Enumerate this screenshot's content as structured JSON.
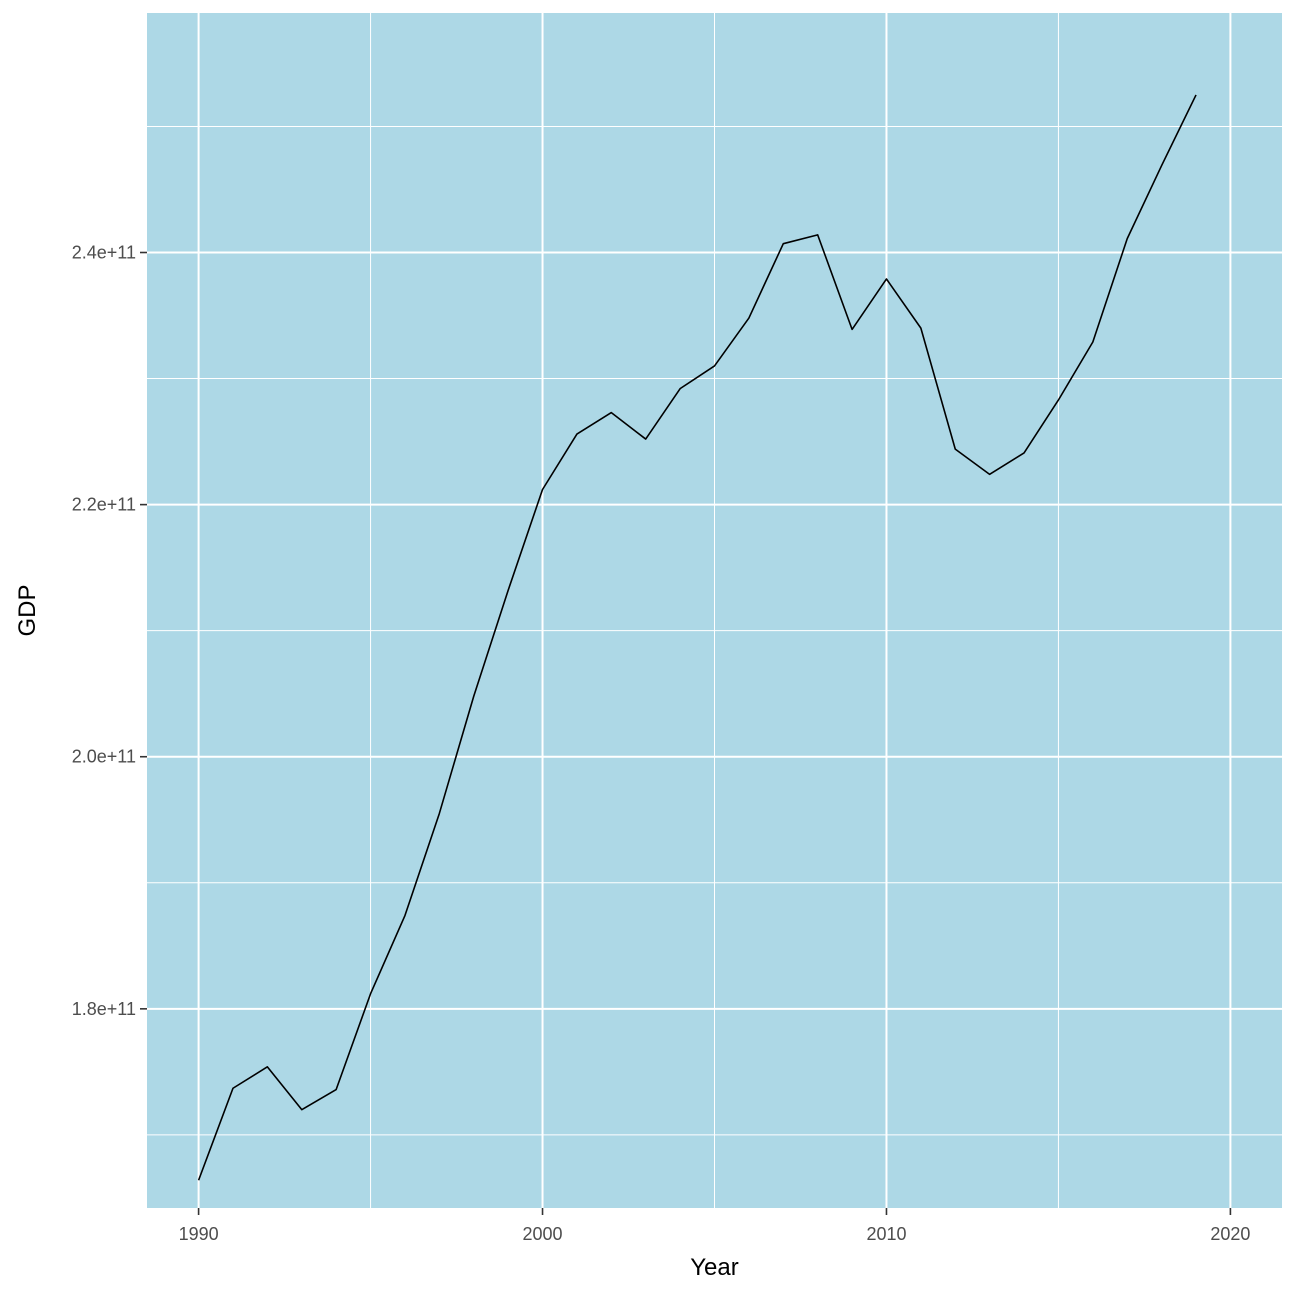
{
  "chart_data": {
    "type": "line",
    "title": "",
    "xlabel": "Year",
    "ylabel": "GDP",
    "xlim": [
      1988.5,
      2021.5
    ],
    "ylim": [
      164200000000.0,
      259000000000.0
    ],
    "x_ticks": [
      1990,
      2000,
      2010,
      2020
    ],
    "x_tick_labels": [
      "1990",
      "2000",
      "2010",
      "2020"
    ],
    "x_minor_ticks": [
      1995,
      2005,
      2015
    ],
    "y_ticks": [
      180000000000.0,
      200000000000.0,
      220000000000.0,
      240000000000.0
    ],
    "y_tick_labels": [
      "1.8e+11",
      "2.0e+11",
      "2.2e+11",
      "2.4e+11"
    ],
    "y_minor_ticks": [
      170000000000.0,
      190000000000.0,
      210000000000.0,
      230000000000.0,
      250000000000.0
    ],
    "grid": true,
    "legend": "none",
    "panel_background": "#add8e6",
    "line_color": "#000000",
    "x": [
      1990,
      1991,
      1992,
      1993,
      1994,
      1995,
      1996,
      1997,
      1998,
      1999,
      2000,
      2001,
      2002,
      2003,
      2004,
      2005,
      2006,
      2007,
      2008,
      2009,
      2010,
      2011,
      2012,
      2013,
      2014,
      2015,
      2016,
      2017,
      2018,
      2019
    ],
    "y": [
      166400000000.0,
      173700000000.0,
      175400000000.0,
      172000000000.0,
      173600000000.0,
      181200000000.0,
      187400000000.0,
      195500000000.0,
      204800000000.0,
      213200000000.0,
      221200000000.0,
      225600000000.0,
      227300000000.0,
      225200000000.0,
      229200000000.0,
      231000000000.0,
      234800000000.0,
      240700000000.0,
      241400000000.0,
      233900000000.0,
      237900000000.0,
      234000000000.0,
      224400000000.0,
      222400000000.0,
      224100000000.0,
      228300000000.0,
      232900000000.0,
      241100000000.0,
      246900000000.0,
      252500000000.0
    ]
  }
}
